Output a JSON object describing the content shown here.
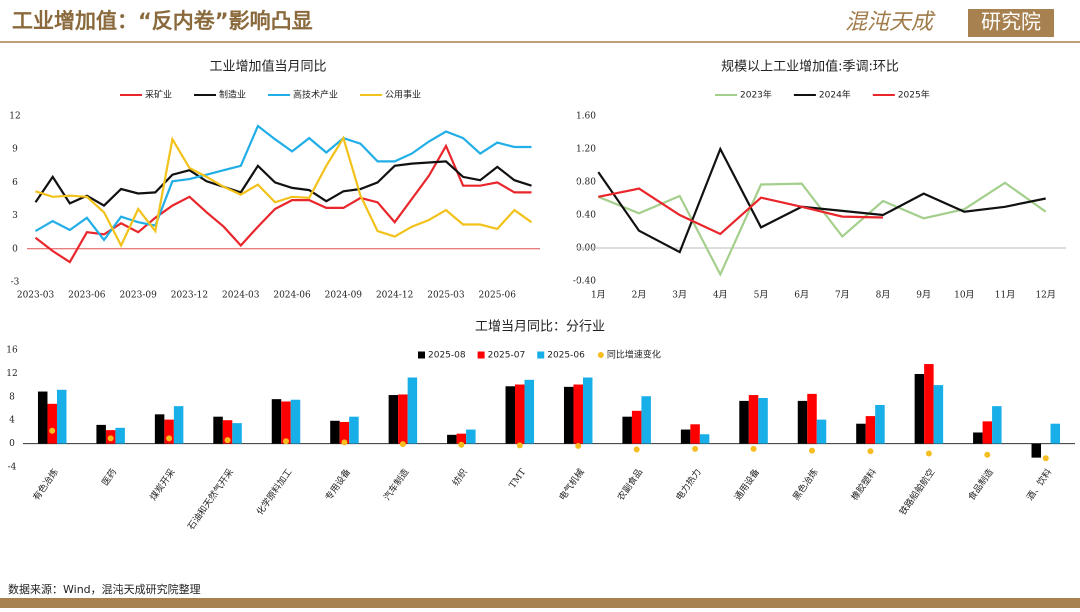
{
  "header": {
    "title": "工业增加值：“反内卷”影响凸显",
    "logo": "混沌天成",
    "logo_box": "研究院"
  },
  "footer": {
    "source": "数据来源：Wind，混沌天成研究院整理"
  },
  "chart_data": [
    {
      "type": "line",
      "title": "工业增加值当月同比",
      "categories": [
        "2023-03",
        null,
        null,
        "2023-06",
        null,
        null,
        "2023-09",
        null,
        null,
        "2023-12",
        null,
        null,
        "2024-03",
        null,
        null,
        "2024-06",
        null,
        null,
        "2024-09",
        null,
        null,
        "2024-12",
        null,
        null,
        "2025-03",
        null,
        null,
        "2025-06",
        null,
        null
      ],
      "ylim": [
        -3,
        12
      ],
      "yticks": [
        -3,
        0,
        3,
        6,
        9,
        12
      ],
      "zero_line_color": "#e05050",
      "series": [
        {
          "name": "采矿业",
          "color": "#e8262b",
          "values": [
            1.0,
            -0.2,
            -1.2,
            1.5,
            1.3,
            2.3,
            1.5,
            2.8,
            3.9,
            4.7,
            3.3,
            2.0,
            0.3,
            2.0,
            3.6,
            4.4,
            4.4,
            3.7,
            3.7,
            4.6,
            4.2,
            2.4,
            4.5,
            6.6,
            9.3,
            5.7,
            5.7,
            6.0,
            5.1,
            5.1
          ]
        },
        {
          "name": "制造业",
          "color": "#111111",
          "values": [
            4.2,
            6.5,
            4.1,
            4.8,
            3.9,
            5.4,
            5.0,
            5.1,
            6.7,
            7.1,
            6.1,
            5.6,
            5.1,
            7.5,
            6.0,
            5.5,
            5.3,
            4.3,
            5.2,
            5.4,
            6.0,
            7.5,
            7.7,
            7.8,
            7.9,
            6.5,
            6.2,
            7.4,
            6.2,
            5.7
          ]
        },
        {
          "name": "高技术产业",
          "color": "#22aee6",
          "values": [
            1.6,
            2.5,
            1.7,
            2.8,
            0.8,
            2.9,
            2.4,
            2.1,
            6.1,
            6.3,
            6.7,
            7.1,
            7.5,
            11.1,
            9.9,
            8.8,
            10.0,
            8.7,
            10.0,
            9.5,
            7.9,
            7.9,
            8.6,
            9.7,
            10.6,
            10.0,
            8.6,
            9.6,
            9.2,
            9.2
          ]
        },
        {
          "name": "公用事业",
          "color": "#f2c21b",
          "values": [
            5.2,
            4.7,
            4.8,
            4.7,
            3.3,
            0.3,
            3.6,
            1.6,
            9.9,
            7.3,
            6.5,
            5.6,
            4.9,
            5.8,
            4.2,
            4.7,
            4.6,
            7.5,
            10.0,
            4.8,
            1.6,
            1.1,
            2.0,
            2.6,
            3.5,
            2.2,
            2.2,
            1.8,
            3.5,
            2.4
          ]
        }
      ]
    },
    {
      "type": "line",
      "title": "规模以上工业增加值:季调:环比",
      "categories": [
        "1月",
        "2月",
        "3月",
        "4月",
        "5月",
        "6月",
        "7月",
        "8月",
        "9月",
        "10月",
        "11月",
        "12月"
      ],
      "ylim": [
        -0.4,
        1.6
      ],
      "yticks": [
        {
          "value": -0.4,
          "label": "-0.40"
        },
        {
          "value": 0,
          "label": "0.00"
        },
        {
          "value": 0.4,
          "label": "0.40"
        },
        {
          "value": 0.8,
          "label": "0.80"
        },
        {
          "value": 1.2,
          "label": "1.20"
        },
        {
          "value": 1.6,
          "label": "1.60"
        }
      ],
      "zero_line_color": "#bbbbbb",
      "series": [
        {
          "name": "2023年",
          "color": "#a4cf8c",
          "values": [
            0.62,
            0.42,
            0.63,
            -0.32,
            0.77,
            0.78,
            0.14,
            0.57,
            0.36,
            0.47,
            0.79,
            0.44
          ]
        },
        {
          "name": "2024年",
          "color": "#111111",
          "values": [
            0.92,
            0.21,
            -0.05,
            1.2,
            0.25,
            0.5,
            0.45,
            0.4,
            0.66,
            0.44,
            0.5,
            0.6
          ]
        },
        {
          "name": "2025年",
          "color": "#e8262b",
          "values": [
            0.62,
            0.72,
            0.4,
            0.17,
            0.61,
            0.5,
            0.38,
            0.37,
            null,
            null,
            null,
            null
          ]
        }
      ]
    },
    {
      "type": "bar",
      "title": "工增当月同比：分行业",
      "categories": [
        "有色冶炼",
        "医药",
        "煤炭开采",
        "石油和天然气开采",
        "化学原料加工",
        "专用设备",
        "汽车制造",
        "纺织",
        "TMT",
        "电气机械",
        "农副食品",
        "电力热力",
        "通用设备",
        "黑色冶炼",
        "橡胶塑料",
        "铁路船舶航空",
        "食品制造",
        "酒、饮料"
      ],
      "ylim": [
        -4,
        16
      ],
      "yticks": [
        -4,
        0,
        4,
        8,
        12,
        16
      ],
      "series": [
        {
          "name": "2025-08",
          "color": "#000000",
          "values": [
            8.9,
            3.2,
            5.0,
            4.6,
            7.6,
            3.9,
            8.3,
            1.5,
            9.8,
            9.7,
            4.6,
            2.4,
            7.3,
            7.3,
            3.4,
            11.9,
            1.9,
            -2.4
          ]
        },
        {
          "name": "2025-07",
          "color": "#ff0000",
          "values": [
            6.8,
            2.3,
            4.1,
            4.0,
            7.2,
            3.7,
            8.4,
            1.7,
            10.1,
            10.1,
            5.6,
            3.3,
            8.3,
            8.5,
            4.7,
            13.6,
            3.8,
            0
          ]
        },
        {
          "name": "2025-06",
          "color": "#18aee8",
          "values": [
            9.2,
            2.7,
            6.4,
            3.5,
            7.5,
            4.6,
            11.3,
            2.4,
            10.9,
            11.3,
            8.1,
            1.6,
            7.8,
            4.1,
            6.6,
            10.0,
            6.4,
            3.4
          ]
        },
        {
          "name": "同比增速变化",
          "color": "#f5bd1f",
          "type": "scatter",
          "values": [
            2.2,
            0.9,
            0.9,
            0.6,
            0.4,
            0.2,
            -0.1,
            -0.2,
            -0.3,
            -0.4,
            -1.0,
            -0.9,
            -0.9,
            -1.2,
            -1.3,
            -1.7,
            -1.9,
            -2.5
          ]
        }
      ]
    }
  ]
}
